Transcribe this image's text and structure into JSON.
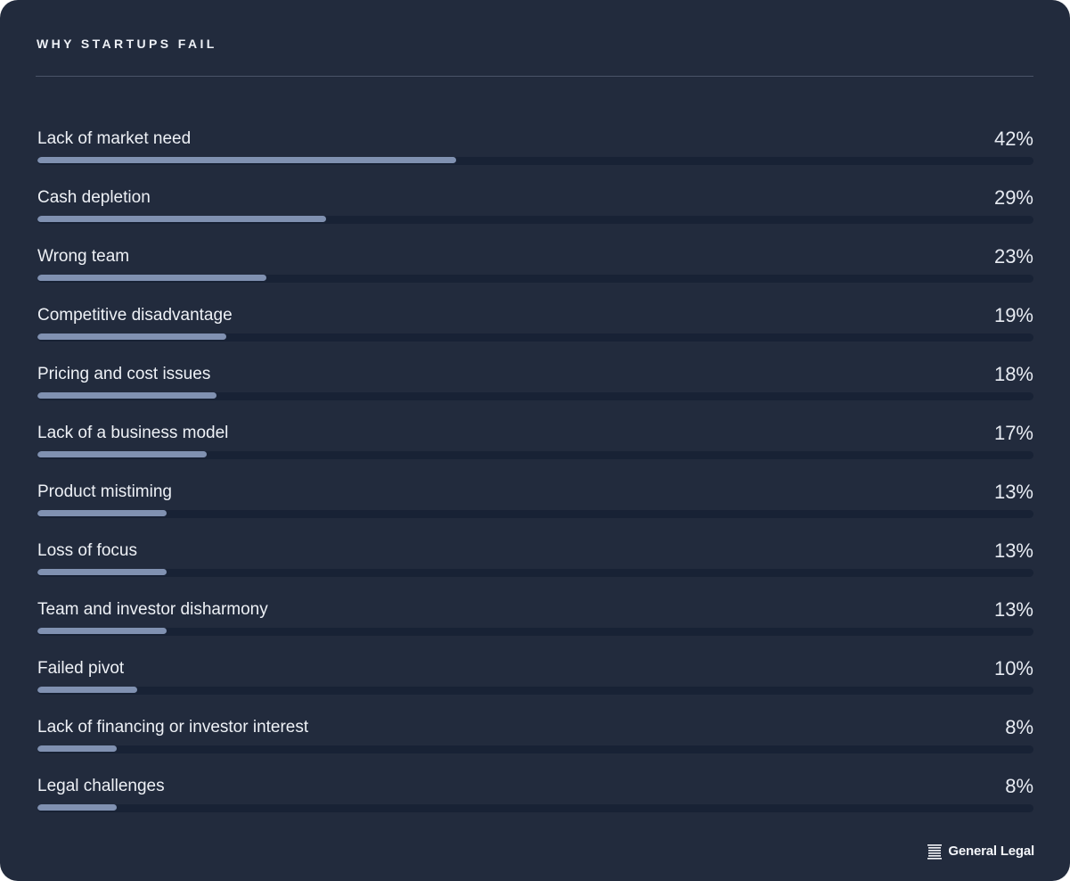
{
  "card": {
    "title": "WHY STARTUPS FAIL"
  },
  "chart_data": {
    "type": "bar",
    "orientation": "horizontal",
    "xlim": [
      0,
      100
    ],
    "categories": [
      "Lack of market need",
      "Cash depletion",
      "Wrong team",
      "Competitive disadvantage",
      "Pricing and cost issues",
      "Lack of a business model",
      "Product mistiming",
      "Loss of focus",
      "Team and investor disharmony",
      "Failed pivot",
      "Lack of financing or investor interest",
      "Legal challenges"
    ],
    "values": [
      42,
      29,
      23,
      19,
      18,
      17,
      13,
      13,
      13,
      10,
      8,
      8
    ],
    "value_labels": [
      "42%",
      "29%",
      "23%",
      "19%",
      "18%",
      "17%",
      "13%",
      "13%",
      "13%",
      "10%",
      "8%",
      "8%"
    ],
    "colors": {
      "background": "#222b3d",
      "track": "#182235",
      "fill": "#8091b1",
      "text": "#eef1f6"
    }
  },
  "footer": {
    "brand_name": "General Legal",
    "brand_icon": "stacked-lines-logo-icon"
  }
}
